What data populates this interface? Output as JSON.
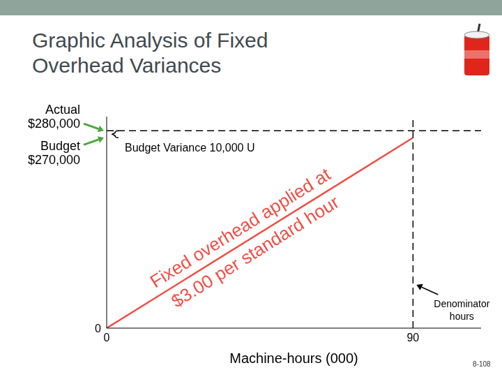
{
  "chart_data": {
    "type": "line",
    "title": "Graphic Analysis of Fixed Overhead Variances",
    "x_label": "Machine-hours (000)",
    "x": [
      0,
      90
    ],
    "values": [
      0,
      270000
    ],
    "color": "#f04e45",
    "line_label": [
      "Fixed overhead applied at",
      "$3.00 per standard hour"
    ],
    "xlim": [
      0,
      110
    ],
    "xticks": [
      0,
      90
    ],
    "ylim": [
      0,
      300000
    ],
    "yticks": [
      0
    ],
    "grid": false,
    "actual": {
      "value": 280000,
      "label": [
        "Actual",
        "$280,000"
      ]
    },
    "budget": {
      "value": 270000,
      "label": [
        "Budget",
        "$270,000"
      ]
    },
    "budget_variance": {
      "label": "Budget Variance 10,000 U"
    },
    "denominator": {
      "value": 90,
      "label": [
        "Denominator",
        "hours"
      ]
    },
    "footer": "8-108"
  }
}
